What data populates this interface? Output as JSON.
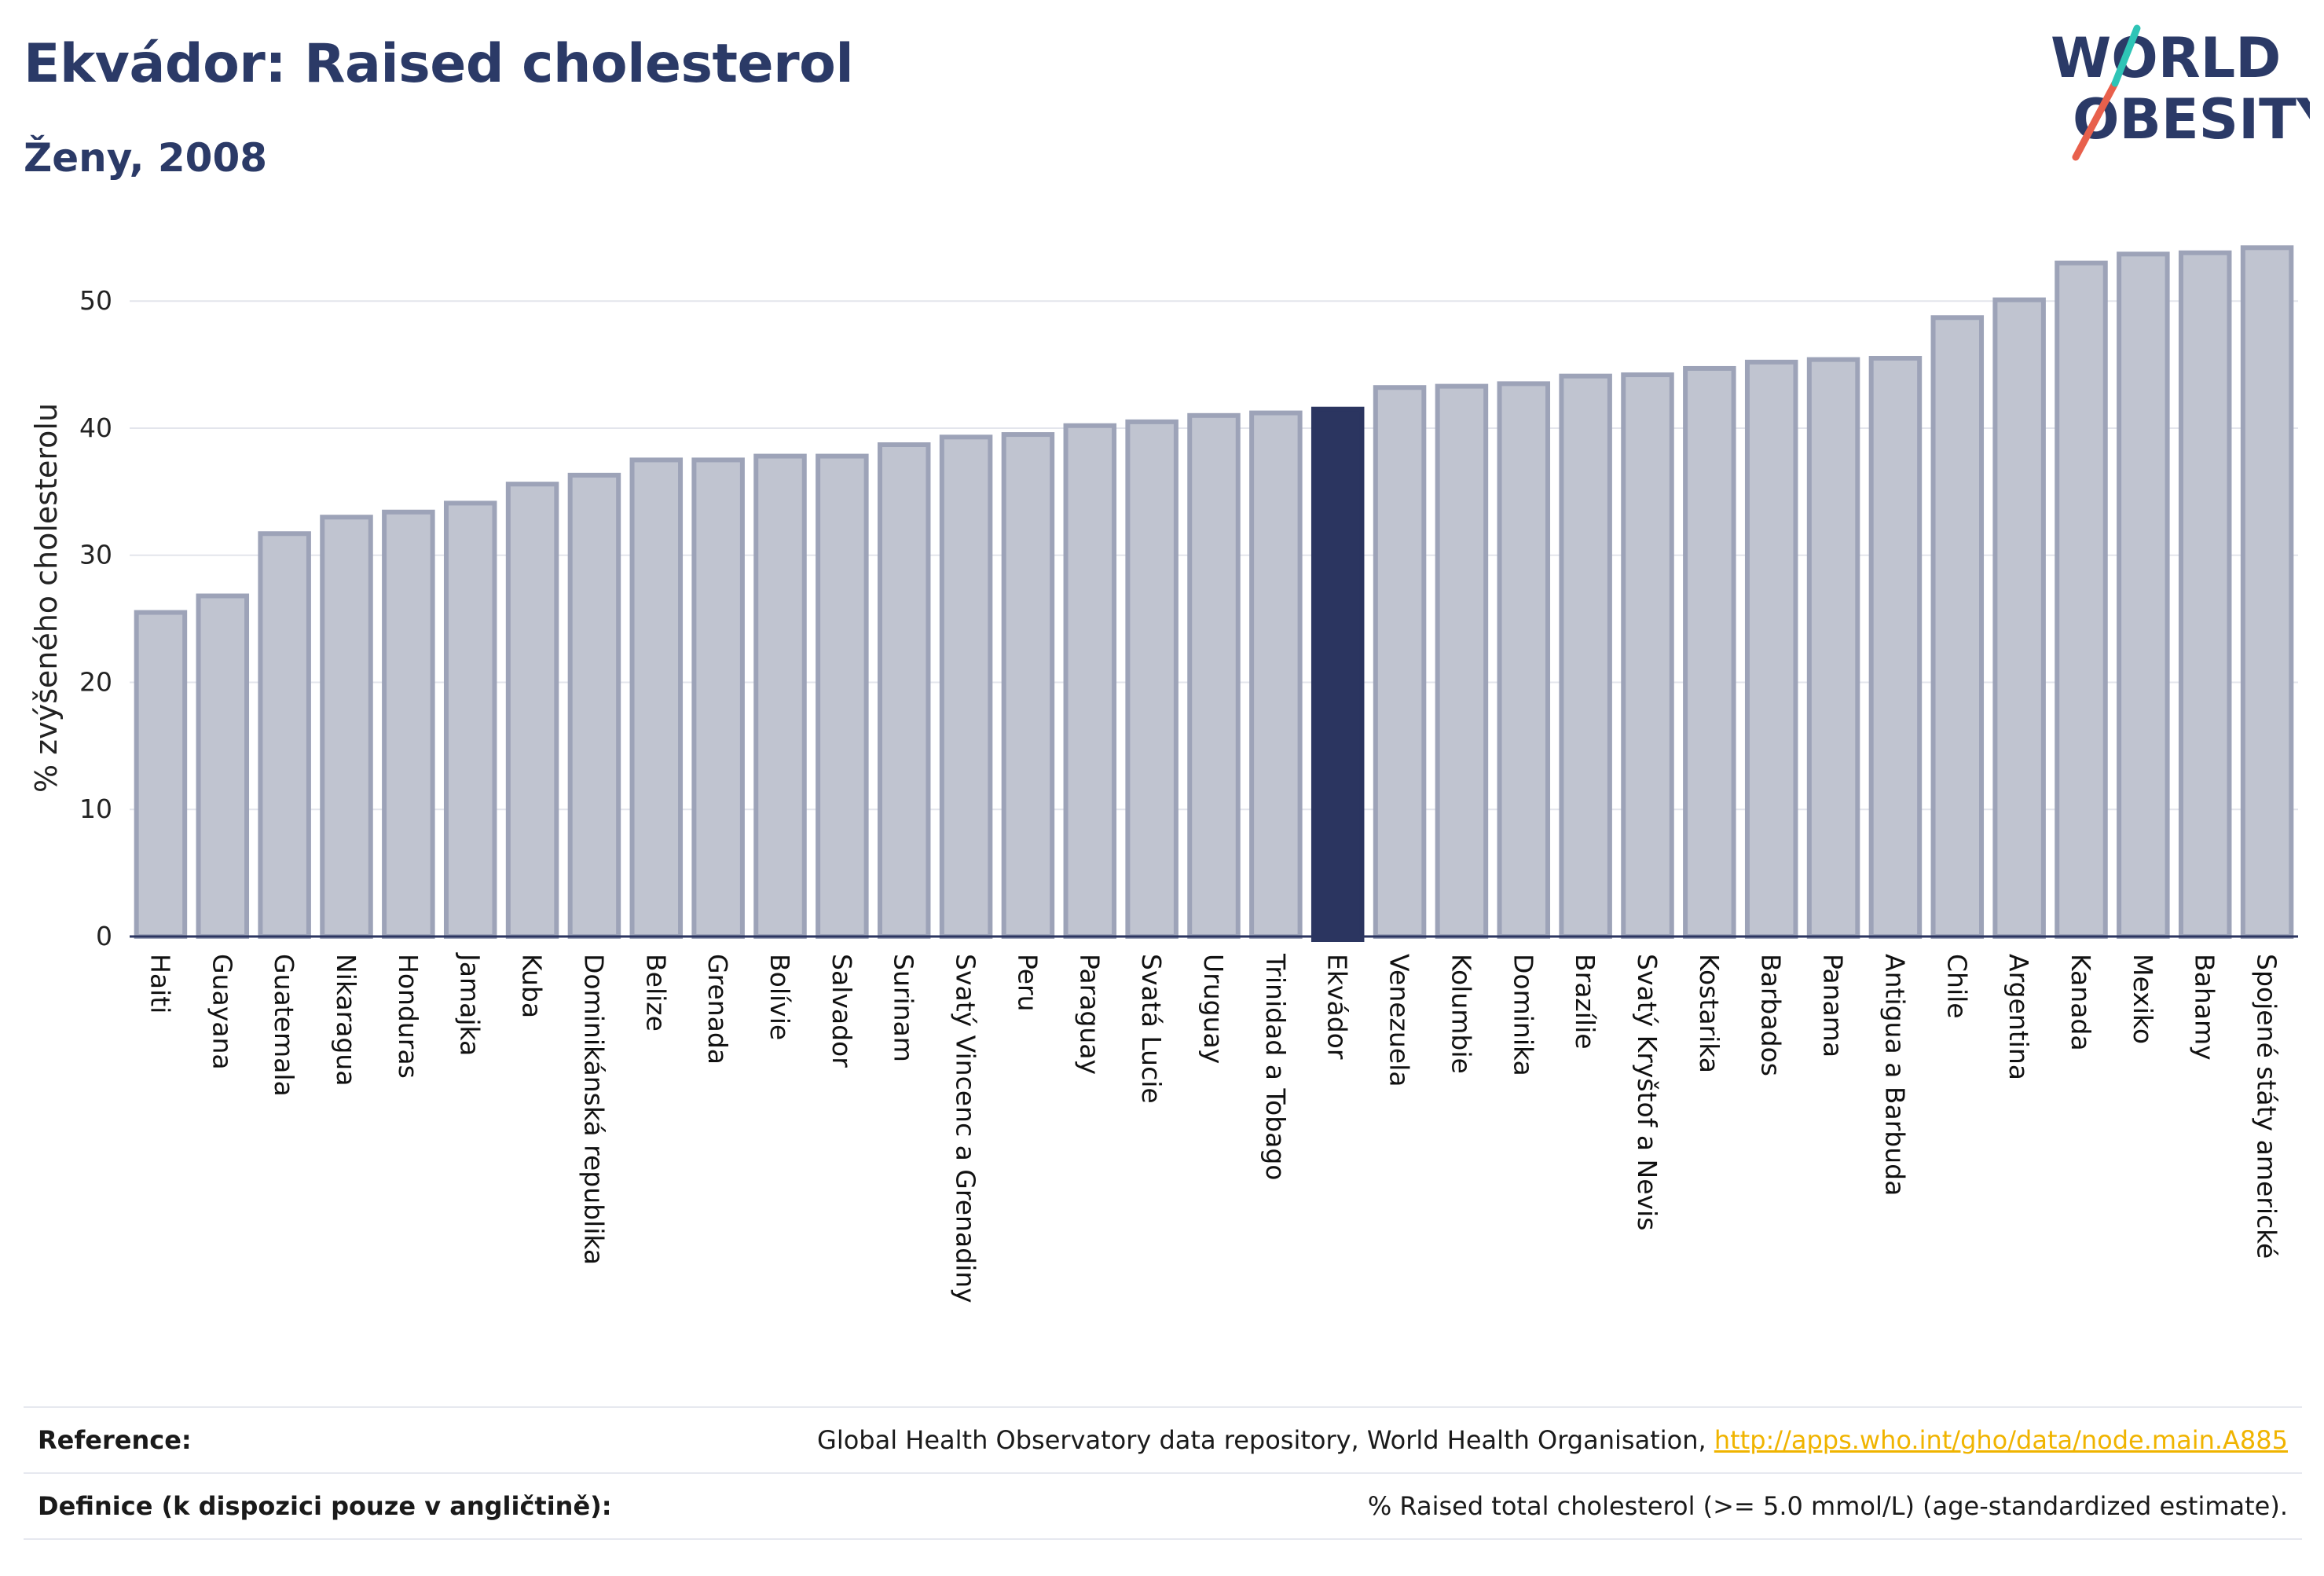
{
  "header": {
    "title": "Ekvádor: Raised cholesterol",
    "subtitle": "Ženy, 2008"
  },
  "logo": {
    "line1": "WORLD",
    "line2": "OBESITY",
    "accent_colors": [
      "#e8604c",
      "#2ec4b6"
    ]
  },
  "chart_data": {
    "type": "bar",
    "ylabel": "% zvýšeného cholesterolu",
    "ylim": [
      0,
      57
    ],
    "yticks": [
      0,
      10,
      20,
      30,
      40,
      50
    ],
    "grid": true,
    "highlight": "Ekvádor",
    "colors": {
      "bar": "#c0c4d0",
      "bar_edge": "#9da3b8",
      "highlight": "#2b3560"
    },
    "categories": [
      "Haiti",
      "Guayana",
      "Guatemala",
      "Nikaragua",
      "Honduras",
      "Jamajka",
      "Kuba",
      "Dominikánská republika",
      "Belize",
      "Grenada",
      "Bolívie",
      "Salvador",
      "Surinam",
      "Svatý Vincenc a Grenadiny",
      "Peru",
      "Paraguay",
      "Svatá Lucie",
      "Uruguay",
      "Trinidad a Tobago",
      "Ekvádor",
      "Venezuela",
      "Kolumbie",
      "Dominika",
      "Brazílie",
      "Svatý Kryštof a Nevis",
      "Kostarika",
      "Barbados",
      "Panama",
      "Antigua a Barbuda",
      "Chile",
      "Argentina",
      "Kanada",
      "Mexiko",
      "Bahamy",
      "Spojené státy americké"
    ],
    "values": [
      25.5,
      26.8,
      31.7,
      33.0,
      33.4,
      34.1,
      35.6,
      36.3,
      37.5,
      37.5,
      37.8,
      37.8,
      38.7,
      39.3,
      39.5,
      40.2,
      40.5,
      41.0,
      41.2,
      41.5,
      43.2,
      43.3,
      43.5,
      44.1,
      44.2,
      44.7,
      45.2,
      45.4,
      45.5,
      48.7,
      50.1,
      53.0,
      53.7,
      53.8,
      54.2
    ]
  },
  "reference": {
    "label": "Reference:",
    "text": "Global Health Observatory data repository, World Health Organisation, ",
    "link": "http://apps.who.int/gho/data/node.main.A885"
  },
  "definition": {
    "label": "Definice (k dispozici pouze v angličtině):",
    "text": "% Raised total cholesterol (>= 5.0 mmol/L) (age-standardized estimate)."
  }
}
